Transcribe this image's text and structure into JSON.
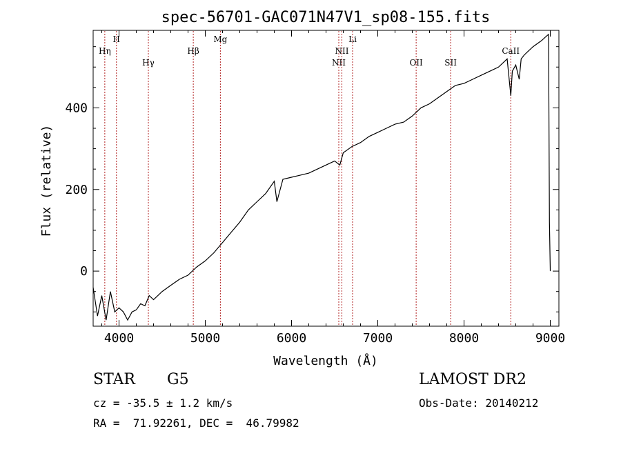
{
  "chart_data": {
    "type": "line",
    "title": "spec-56701-GAC071N47V1_sp08-155.fits",
    "xlabel": "Wavelength (Å)",
    "ylabel": "Flux (relative)",
    "xlim": [
      3700,
      9100
    ],
    "ylim": [
      -135,
      590
    ],
    "xticks": [
      4000,
      5000,
      6000,
      7000,
      8000,
      9000
    ],
    "yticks": [
      0,
      200,
      400
    ],
    "grid": false,
    "line_color": "#000000",
    "marker_color": "#b22222",
    "spectrum": {
      "name": "flux",
      "x": [
        3700,
        3750,
        3800,
        3850,
        3900,
        3950,
        4000,
        4050,
        4100,
        4150,
        4200,
        4250,
        4300,
        4350,
        4400,
        4500,
        4600,
        4700,
        4800,
        4900,
        5000,
        5100,
        5200,
        5300,
        5400,
        5500,
        5600,
        5700,
        5800,
        5830,
        5900,
        6000,
        6100,
        6200,
        6300,
        6400,
        6500,
        6560,
        6600,
        6700,
        6800,
        6900,
        7000,
        7100,
        7200,
        7300,
        7400,
        7500,
        7600,
        7700,
        7800,
        7900,
        8000,
        8100,
        8200,
        8300,
        8400,
        8450,
        8500,
        8542,
        8560,
        8600,
        8640,
        8662,
        8700,
        8800,
        8900,
        8950,
        8980,
        8990,
        9000
      ],
      "y": [
        -40,
        -110,
        -60,
        -120,
        -50,
        -100,
        -90,
        -100,
        -120,
        -100,
        -95,
        -80,
        -85,
        -60,
        -70,
        -50,
        -35,
        -20,
        -10,
        10,
        25,
        45,
        70,
        95,
        120,
        150,
        170,
        190,
        220,
        170,
        225,
        230,
        235,
        240,
        250,
        260,
        270,
        260,
        290,
        305,
        315,
        330,
        340,
        350,
        360,
        365,
        380,
        400,
        410,
        425,
        440,
        455,
        460,
        470,
        480,
        490,
        500,
        510,
        520,
        430,
        490,
        505,
        470,
        520,
        530,
        550,
        565,
        575,
        580,
        120,
        0
      ]
    },
    "lines": [
      {
        "label": "Hη",
        "x": 3835,
        "tier": 2
      },
      {
        "label": "H",
        "x": 3970,
        "tier": 1
      },
      {
        "label": "Hγ",
        "x": 4340,
        "tier": 3
      },
      {
        "label": "Hβ",
        "x": 4861,
        "tier": 2
      },
      {
        "label": "Mg",
        "x": 5175,
        "tier": 1
      },
      {
        "label": "NII",
        "x": 6548,
        "tier": 3
      },
      {
        "label": "NII",
        "x": 6584,
        "tier": 2
      },
      {
        "label": "Li",
        "x": 6708,
        "tier": 1
      },
      {
        "label": "OII",
        "x": 7445,
        "tier": 3
      },
      {
        "label": "SII",
        "x": 7845,
        "tier": 3
      },
      {
        "label": "CaII",
        "x": 8542,
        "tier": 2
      }
    ]
  },
  "info": {
    "class": "STAR",
    "subclass": "G5",
    "survey": "LAMOST DR2",
    "cz": "cz = -35.5 ± 1.2 km/s",
    "obs_date": "Obs-Date: 20140212",
    "coords": "RA =  71.92261, DEC =  46.79982"
  }
}
